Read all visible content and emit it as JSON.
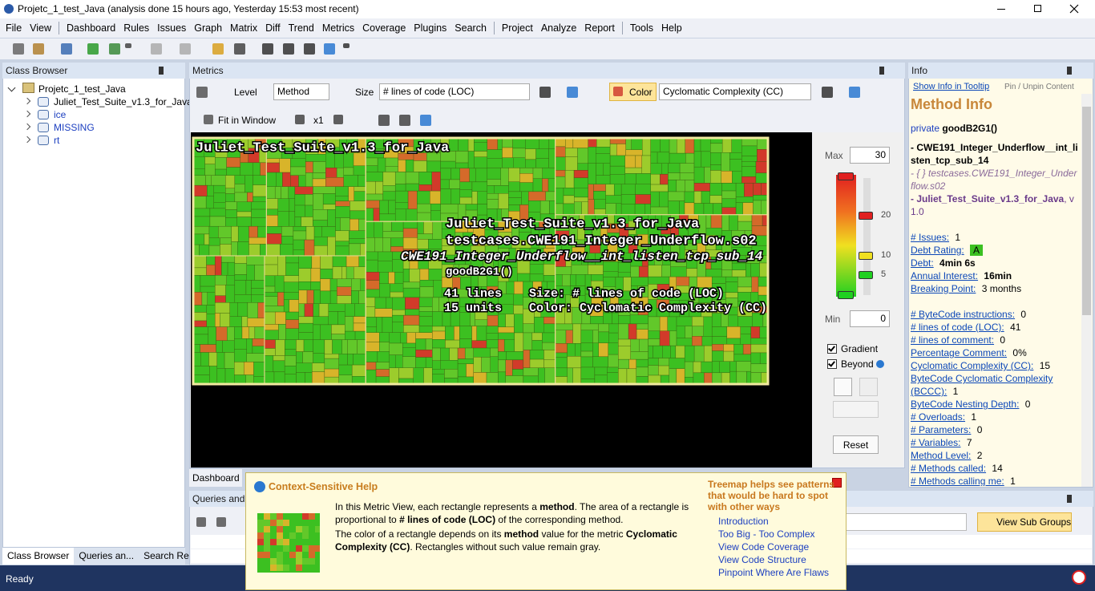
{
  "title_bar": {
    "title": "Projetc_1_test_Java  (analysis done 15 hours ago, Yesterday 15:53 most recent)"
  },
  "menu": [
    [
      "File",
      "View"
    ],
    [
      "Dashboard",
      "Rules",
      "Issues",
      "Graph",
      "Matrix",
      "Diff",
      "Trend",
      "Metrics",
      "Coverage",
      "Plugins",
      "Search"
    ],
    [
      "Project",
      "Analyze",
      "Report"
    ],
    [
      "Tools",
      "Help"
    ]
  ],
  "class_browser": {
    "title": "Class Browser",
    "root": "Projetc_1_test_Java",
    "children": [
      "Juliet_Test_Suite_v1.3_for_Java",
      "ice",
      "MISSING",
      "rt"
    ],
    "tabs": [
      "Class Browser",
      "Queries an...",
      "Search Res..."
    ]
  },
  "metrics": {
    "title": "Metrics",
    "level_label": "Level",
    "level": "Method",
    "size_label": "Size",
    "size": "# lines of code (LOC)",
    "color_label": "Color",
    "color": "Cyclomatic Complexity (CC)",
    "fit": "Fit in Window",
    "zoom": "x1",
    "root_label": "Juliet_Test_Suite_v1.3_for_Java",
    "tooltip": {
      "assembly": "Juliet_Test_Suite_v1.3_for_Java",
      "namespace": "testcases.CWE191_Integer_Underflow.s02",
      "type": "CWE191_Integer_Underflow__int_listen_tcp_sub_14",
      "method": "goodB2G1()",
      "lines": "41 lines",
      "units": "15 units",
      "size": "Size: # lines of code (LOC)",
      "color": "Color: Cyclomatic Complexity (CC)"
    },
    "tab": "Dashboard"
  },
  "legend": {
    "max_label": "Max",
    "max": 30,
    "min_label": "Min",
    "min": 0,
    "ticks": [
      20,
      10,
      5
    ],
    "gradient": "Gradient",
    "beyond": "Beyond",
    "reset": "Reset"
  },
  "info": {
    "title": "Info",
    "show_tooltip": "Show Info in Tooltip",
    "pin": "Pin / Unpin Content",
    "heading": "Method Info",
    "visibility": "private",
    "method": "goodB2G1()",
    "type": "- CWE191_Integer_Underflow__int_listen_tcp_sub_14",
    "namespace": "- { } testcases.CWE191_Integer_Underflow.s02",
    "assembly": "- Juliet_Test_Suite_v1.3_for_Java",
    "version": ", v1.0",
    "groups": [
      [
        {
          "label": "# Issues:",
          "value": "1"
        },
        {
          "label": "Debt Rating:",
          "value": "A"
        },
        {
          "label": "Debt:",
          "value": "4min 6s"
        },
        {
          "label": "Annual Interest:",
          "value": "16min"
        },
        {
          "label": "Breaking Point:",
          "value": "3 months"
        }
      ],
      [
        {
          "label": "# ByteCode instructions:",
          "value": "0"
        },
        {
          "label": "# lines of code (LOC):",
          "value": "41"
        },
        {
          "label": "# lines of comment:",
          "value": "0"
        },
        {
          "label": "Percentage Comment:",
          "value": "0%"
        },
        {
          "label": "Cyclomatic Complexity (CC):",
          "value": "15"
        },
        {
          "label": "ByteCode Cyclomatic Complexity (BCCC):",
          "value": "1"
        },
        {
          "label": "ByteCode Nesting Depth:",
          "value": "0"
        },
        {
          "label": "# Overloads:",
          "value": "1"
        },
        {
          "label": "# Parameters:",
          "value": "0"
        },
        {
          "label": "# Variables:",
          "value": "7"
        },
        {
          "label": "Method Level:",
          "value": "2"
        },
        {
          "label": "# Methods called:",
          "value": "14"
        },
        {
          "label": "# Methods calling me:",
          "value": "1"
        }
      ]
    ]
  },
  "queries": {
    "title": "Queries and R",
    "button": "View Sub Groups"
  },
  "help": {
    "title": "Context-Sensitive Help",
    "paragraphs": [
      [
        "In this Metric View, each rectangle represents a ",
        "method",
        ". The area of a rectangle is proportional to ",
        "# lines of code (LOC)",
        " of the corresponding method."
      ],
      [
        "The color of a rectangle depends on its ",
        "method",
        " value for the metric ",
        "Cyclomatic Complexity (CC)",
        ". Rectangles without such value remain gray."
      ]
    ],
    "side_heading": "Treemap helps see patterns that would be hard to spot with other ways",
    "links": [
      "Introduction",
      "Too Big - Too Complex",
      "View Code Coverage",
      "View Code Structure",
      "Pinpoint Where Are Flaws"
    ]
  },
  "status": "Ready"
}
